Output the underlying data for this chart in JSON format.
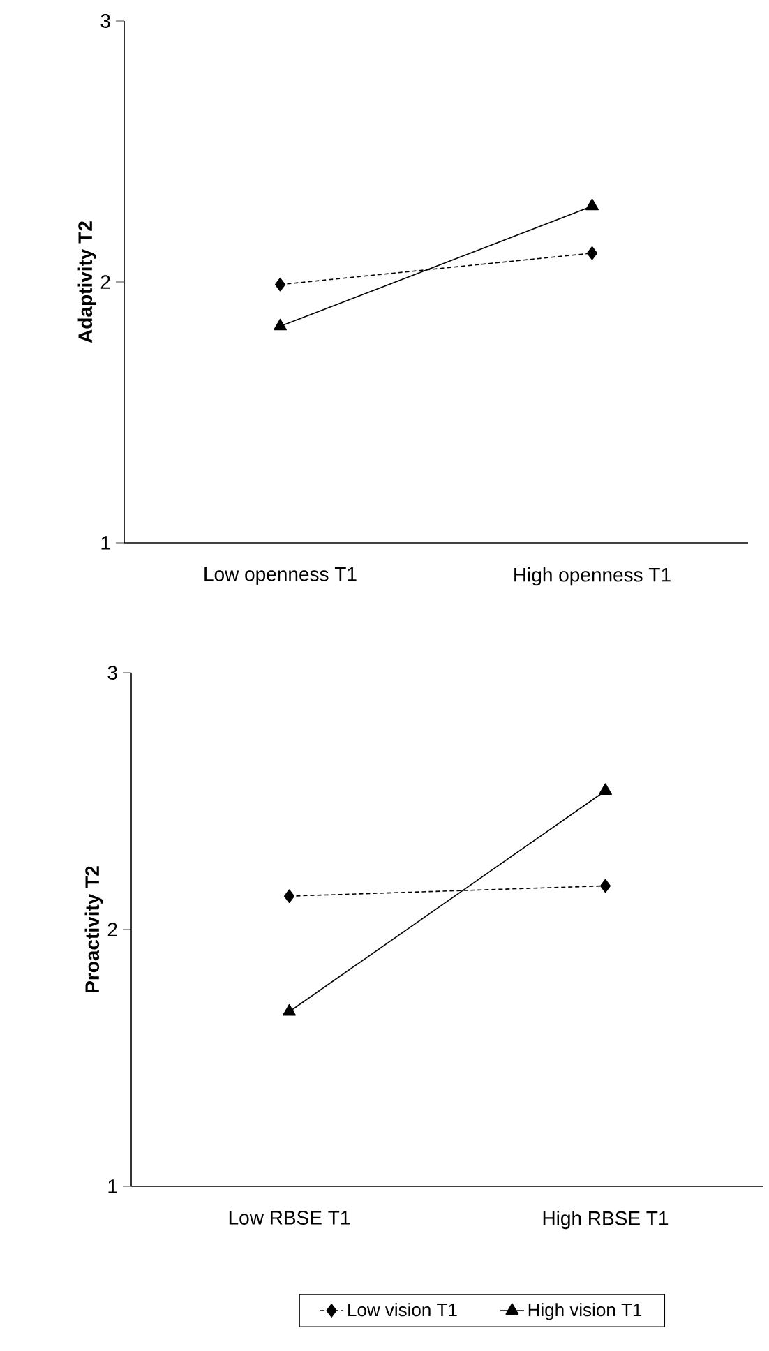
{
  "chart_data": [
    {
      "type": "line",
      "categories": [
        "Low openness T1",
        "High openness T1"
      ],
      "ylabel": "Adaptivity T2",
      "ylim": [
        1,
        3
      ],
      "yticks": [
        1,
        2,
        3
      ],
      "series": [
        {
          "color": "#000000",
          "values": [
            1.99,
            2.11
          ],
          "marker": "diamond",
          "line_style": "dashed"
        },
        {
          "color": "#000000",
          "values": [
            1.83,
            2.29
          ],
          "marker": "triangle",
          "line_style": "solid"
        }
      ]
    },
    {
      "type": "line",
      "categories": [
        "Low RBSE T1",
        "High RBSE T1"
      ],
      "ylabel": "Proactivity T2",
      "ylim": [
        1,
        3
      ],
      "yticks": [
        1,
        2,
        3
      ],
      "legend": "bottom",
      "series": [
        {
          "name": "Low vision T1",
          "color": "#000000",
          "values": [
            2.13,
            2.17
          ],
          "marker": "diamond",
          "line_style": "dashed"
        },
        {
          "name": "High vision T1",
          "color": "#000000",
          "values": [
            1.68,
            2.54
          ],
          "marker": "triangle",
          "line_style": "solid"
        }
      ]
    }
  ]
}
